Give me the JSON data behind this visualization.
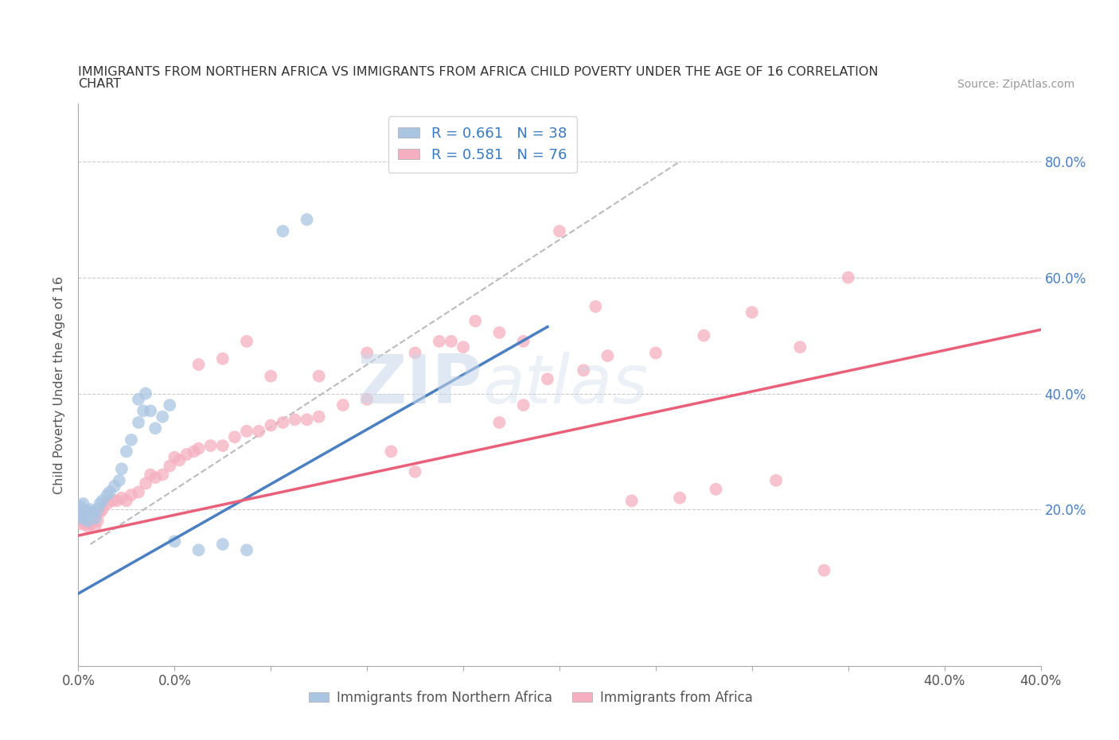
{
  "title_line1": "IMMIGRANTS FROM NORTHERN AFRICA VS IMMIGRANTS FROM AFRICA CHILD POVERTY UNDER THE AGE OF 16 CORRELATION",
  "title_line2": "CHART",
  "source": "Source: ZipAtlas.com",
  "ylabel": "Child Poverty Under the Age of 16",
  "xlim": [
    0.0,
    0.4
  ],
  "ylim": [
    -0.07,
    0.9
  ],
  "xticks": [
    0.0,
    0.04,
    0.08,
    0.12,
    0.16,
    0.2,
    0.24,
    0.28,
    0.32,
    0.36,
    0.4
  ],
  "xticklabels_show": {
    "0.0": "0.0%",
    "0.4": "40.0%"
  },
  "yticks": [
    0.0,
    0.2,
    0.4,
    0.6,
    0.8
  ],
  "yticklabels_right": [
    "",
    "20.0%",
    "40.0%",
    "60.0%",
    "80.0%"
  ],
  "R_blue": 0.661,
  "N_blue": 38,
  "R_pink": 0.581,
  "N_pink": 76,
  "blue_color": "#aac5e2",
  "pink_color": "#f5afc0",
  "blue_line_color": "#4a7fc1",
  "pink_line_color": "#e8607a",
  "diagonal_color": "#bbbbbb",
  "legend_label_blue": "Immigrants from Northern Africa",
  "legend_label_pink": "Immigrants from Africa",
  "watermark_zip": "ZIP",
  "watermark_atlas": "atlas",
  "blue_scatter_x": [
    0.001,
    0.001,
    0.001,
    0.002,
    0.002,
    0.002,
    0.003,
    0.003,
    0.004,
    0.004,
    0.005,
    0.005,
    0.006,
    0.007,
    0.008,
    0.009,
    0.01,
    0.012,
    0.013,
    0.015,
    0.017,
    0.018,
    0.02,
    0.022,
    0.025,
    0.027,
    0.03,
    0.032,
    0.035,
    0.038,
    0.025,
    0.028,
    0.04,
    0.05,
    0.06,
    0.07,
    0.085,
    0.095
  ],
  "blue_scatter_y": [
    0.185,
    0.195,
    0.205,
    0.19,
    0.2,
    0.21,
    0.185,
    0.195,
    0.18,
    0.19,
    0.195,
    0.2,
    0.195,
    0.185,
    0.2,
    0.21,
    0.215,
    0.225,
    0.23,
    0.24,
    0.25,
    0.27,
    0.3,
    0.32,
    0.35,
    0.37,
    0.37,
    0.34,
    0.36,
    0.38,
    0.39,
    0.4,
    0.145,
    0.13,
    0.14,
    0.13,
    0.68,
    0.7
  ],
  "pink_scatter_x": [
    0.001,
    0.001,
    0.002,
    0.002,
    0.003,
    0.003,
    0.004,
    0.004,
    0.005,
    0.005,
    0.006,
    0.007,
    0.008,
    0.009,
    0.01,
    0.012,
    0.014,
    0.016,
    0.018,
    0.02,
    0.022,
    0.025,
    0.028,
    0.03,
    0.032,
    0.035,
    0.038,
    0.04,
    0.042,
    0.045,
    0.048,
    0.05,
    0.055,
    0.06,
    0.065,
    0.07,
    0.075,
    0.08,
    0.085,
    0.09,
    0.095,
    0.1,
    0.11,
    0.12,
    0.13,
    0.14,
    0.155,
    0.165,
    0.175,
    0.185,
    0.05,
    0.06,
    0.07,
    0.08,
    0.1,
    0.12,
    0.14,
    0.15,
    0.16,
    0.175,
    0.185,
    0.195,
    0.21,
    0.22,
    0.24,
    0.26,
    0.28,
    0.3,
    0.32,
    0.2,
    0.215,
    0.23,
    0.25,
    0.265,
    0.29,
    0.31
  ],
  "pink_scatter_y": [
    0.175,
    0.185,
    0.18,
    0.195,
    0.175,
    0.185,
    0.17,
    0.18,
    0.175,
    0.185,
    0.18,
    0.17,
    0.18,
    0.195,
    0.2,
    0.21,
    0.215,
    0.215,
    0.22,
    0.215,
    0.225,
    0.23,
    0.245,
    0.26,
    0.255,
    0.26,
    0.275,
    0.29,
    0.285,
    0.295,
    0.3,
    0.305,
    0.31,
    0.31,
    0.325,
    0.335,
    0.335,
    0.345,
    0.35,
    0.355,
    0.355,
    0.36,
    0.38,
    0.39,
    0.3,
    0.265,
    0.49,
    0.525,
    0.35,
    0.38,
    0.45,
    0.46,
    0.49,
    0.43,
    0.43,
    0.47,
    0.47,
    0.49,
    0.48,
    0.505,
    0.49,
    0.425,
    0.44,
    0.465,
    0.47,
    0.5,
    0.54,
    0.48,
    0.6,
    0.68,
    0.55,
    0.215,
    0.22,
    0.235,
    0.25,
    0.095
  ],
  "blue_line_x": [
    0.0,
    0.195
  ],
  "blue_line_y": [
    0.055,
    0.515
  ],
  "pink_line_x": [
    0.0,
    0.4
  ],
  "pink_line_y": [
    0.155,
    0.51
  ]
}
